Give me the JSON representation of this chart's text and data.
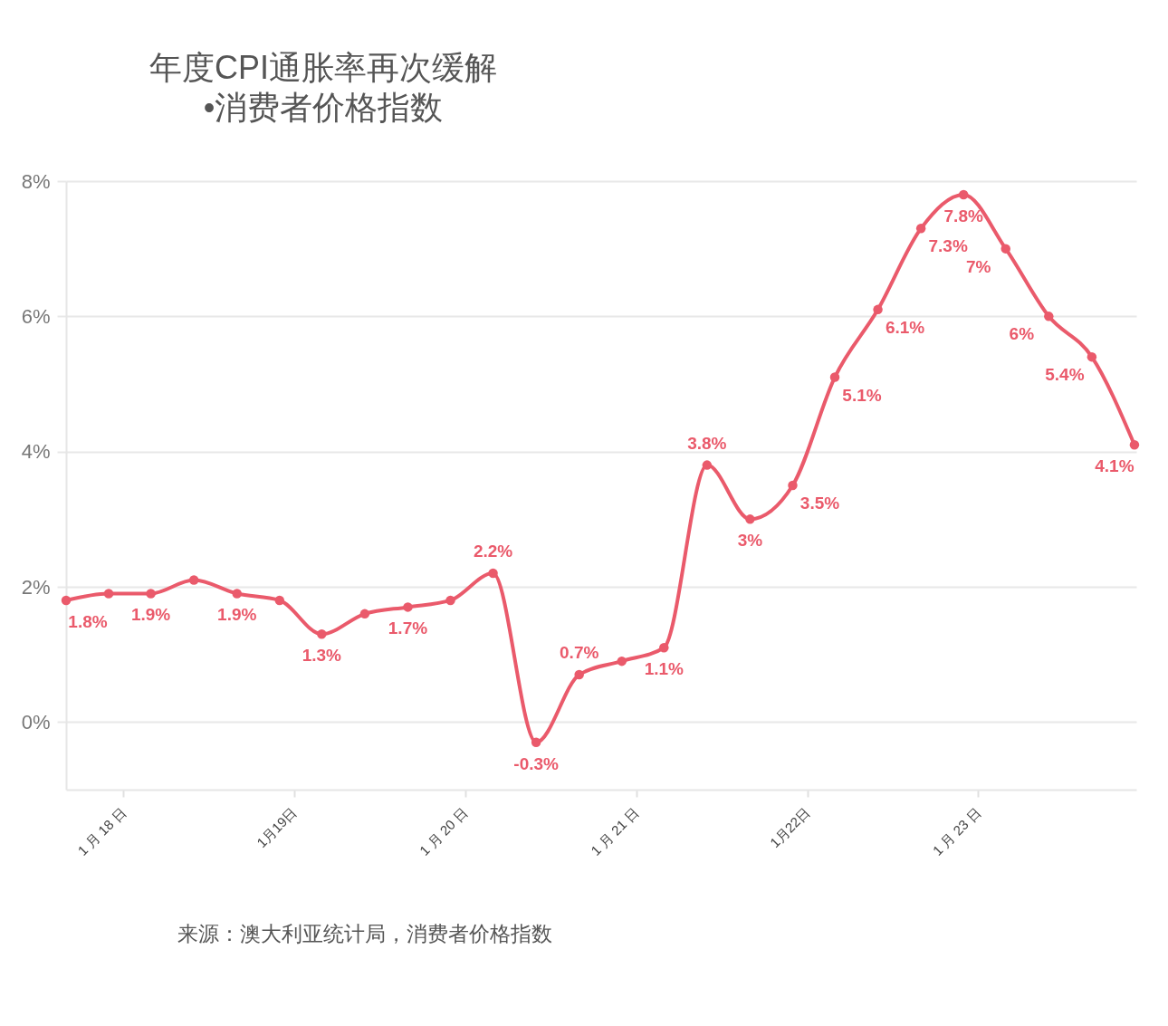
{
  "chart_data": {
    "type": "line",
    "title": "年度CPI通胀率再次缓解\n•消费者价格指数",
    "x": [
      "2017-09",
      "2017-12",
      "2018-03",
      "2018-06",
      "2018-09",
      "2018-12",
      "2019-03",
      "2019-06",
      "2019-09",
      "2019-12",
      "2020-03",
      "2020-06",
      "2020-09",
      "2020-12",
      "2021-03",
      "2021-06",
      "2021-09",
      "2021-12",
      "2022-03",
      "2022-06",
      "2022-09",
      "2022-12",
      "2023-03",
      "2023-06",
      "2023-09",
      "2023-12"
    ],
    "values": [
      1.8,
      1.9,
      1.9,
      2.1,
      1.9,
      1.8,
      1.3,
      1.6,
      1.7,
      1.8,
      2.2,
      -0.3,
      0.7,
      0.9,
      1.1,
      3.8,
      3.0,
      3.5,
      5.1,
      6.1,
      7.3,
      7.8,
      7.0,
      6.0,
      5.4,
      4.1
    ],
    "value_labels": [
      "1.8%",
      null,
      "1.9%",
      null,
      "1.9%",
      null,
      "1.3%",
      null,
      "1.7%",
      null,
      "2.2%",
      "-0.3%",
      "0.7%",
      null,
      "1.1%",
      "3.8%",
      "3%",
      "3.5%",
      "5.1%",
      "6.1%",
      "7.3%",
      "7.8%",
      "7%",
      "6%",
      "5.4%",
      "4.1%"
    ],
    "color": "#ea5a6b",
    "ylim": [
      -1,
      8
    ],
    "yticks": [
      {
        "value": 0,
        "label": "0%"
      },
      {
        "value": 2,
        "label": "2%"
      },
      {
        "value": 4,
        "label": "4%"
      },
      {
        "value": 6,
        "label": "6%"
      },
      {
        "value": 8,
        "label": "8%"
      }
    ],
    "xlim": [
      "2017-09-01",
      "2023-12-05"
    ],
    "xticks": [
      {
        "value": "2018-01-01",
        "label": "1 月 18 日"
      },
      {
        "value": "2019-01-01",
        "label": "1月19日"
      },
      {
        "value": "2020-01-01",
        "label": "1 月 20 日"
      },
      {
        "value": "2021-01-01",
        "label": "1 月 21 日"
      },
      {
        "value": "2022-01-01",
        "label": "1月22日"
      },
      {
        "value": "2023-01-01",
        "label": "1 月 23 日"
      }
    ],
    "grid": "y",
    "marker": "circle",
    "line_style": "solid",
    "annotations": [
      "来源：澳大利亚统计局，消费者价格指数"
    ]
  }
}
